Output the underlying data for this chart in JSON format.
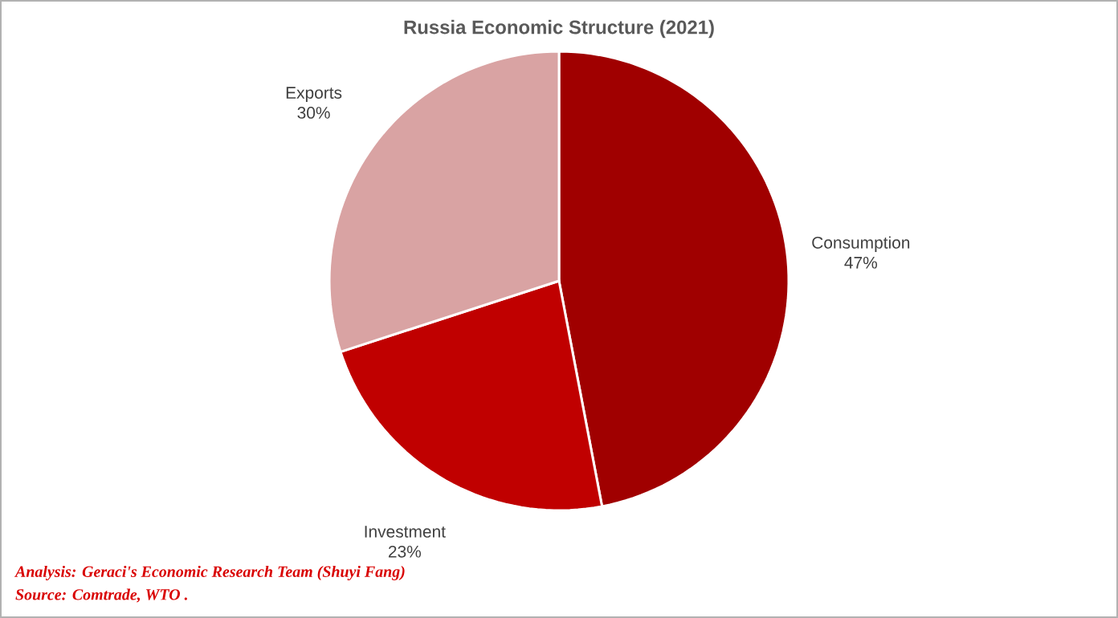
{
  "chart_data": {
    "type": "pie",
    "title": "Russia Economic Structure (2021)",
    "categories": [
      "Consumption",
      "Investment",
      "Exports"
    ],
    "values": [
      47,
      23,
      30
    ],
    "colors": [
      "#a00000",
      "#c00000",
      "#d9a3a3"
    ],
    "value_labels": [
      "47%",
      "23%",
      "30%"
    ],
    "annotations": [
      "Analysis: Geraci's Economic Research Team (Shuyi Fang)",
      "Source: Comtrade, WTO ."
    ]
  }
}
